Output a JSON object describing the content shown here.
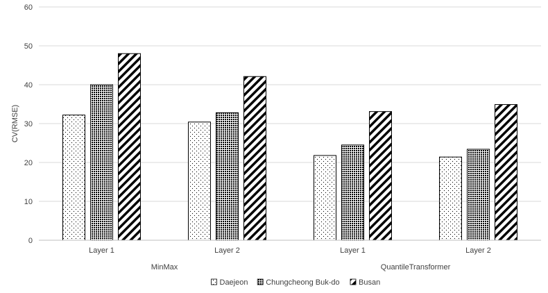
{
  "chart_data": {
    "type": "bar",
    "ylabel": "CV(RMSE)",
    "ylim": [
      0,
      60
    ],
    "yticks": [
      0,
      10,
      20,
      30,
      40,
      50,
      60
    ],
    "grid": true,
    "legend_position": "bottom",
    "groups": [
      "MinMax",
      "QuantileTransformer"
    ],
    "categories": [
      "Layer 1",
      "Layer 2",
      "Layer 1",
      "Layer 2"
    ],
    "category_group": [
      0,
      0,
      1,
      1
    ],
    "series": [
      {
        "name": "Daejeon",
        "pattern": "dots-sparse",
        "values": [
          32.2,
          30.4,
          21.8,
          21.4
        ]
      },
      {
        "name": "Chungcheong Buk-do",
        "pattern": "dots-dense",
        "values": [
          40.0,
          32.8,
          24.5,
          23.4
        ]
      },
      {
        "name": "Busan",
        "pattern": "diagonal-stripes",
        "values": [
          48.0,
          42.1,
          33.1,
          34.9
        ]
      }
    ]
  }
}
